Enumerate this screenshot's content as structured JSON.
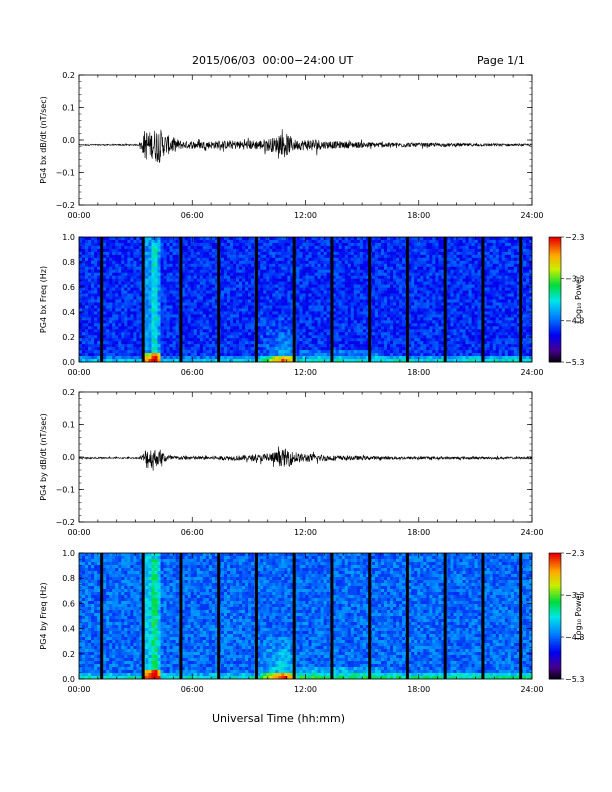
{
  "header": {
    "title": "2015/06/03  00:00−24:00 UT",
    "page": "Page 1/1"
  },
  "footer": {
    "xlabel": "Universal Time (hh:mm)"
  },
  "colors": {
    "axes": "#000000",
    "trace": "#000000",
    "gap": "#000000"
  },
  "chart_data": [
    {
      "type": "line",
      "ylabel": "PG4 bx dB/dt (nT/sec)",
      "x_ticks": [
        "00:00",
        "06:00",
        "12:00",
        "18:00",
        "24:00"
      ],
      "xlim": [
        0,
        24
      ],
      "ylim": [
        -0.2,
        0.2
      ],
      "y_ticks": [
        "0.2",
        "0.1",
        "0.0",
        "−0.1",
        "−0.2"
      ],
      "y_tick_values": [
        0.2,
        0.1,
        0.0,
        -0.1,
        -0.2
      ],
      "baseline": -0.015,
      "activity": [
        {
          "x": 3.3,
          "amp": 0.01
        },
        {
          "x": 3.5,
          "amp": 0.05
        },
        {
          "x": 3.8,
          "amp": 0.04
        },
        {
          "x": 4.2,
          "amp": 0.06
        },
        {
          "x": 4.5,
          "amp": 0.035
        },
        {
          "x": 5.5,
          "amp": 0.012
        },
        {
          "x": 7.0,
          "amp": 0.012
        },
        {
          "x": 9.5,
          "amp": 0.015
        },
        {
          "x": 10.5,
          "amp": 0.025
        },
        {
          "x": 11.0,
          "amp": 0.035
        },
        {
          "x": 11.5,
          "amp": 0.015
        },
        {
          "x": 12.5,
          "amp": 0.02
        },
        {
          "x": 13.0,
          "amp": 0.012
        },
        {
          "x": 16.0,
          "amp": 0.008
        },
        {
          "x": 20.0,
          "amp": 0.005
        },
        {
          "x": 24.0,
          "amp": 0.003
        }
      ]
    },
    {
      "type": "heatmap",
      "ylabel": "PG4 bx Freq (Hz)",
      "x_ticks": [
        "00:00",
        "06:00",
        "12:00",
        "18:00",
        "24:00"
      ],
      "xlim": [
        0,
        24
      ],
      "ylim": [
        0.0,
        1.0
      ],
      "y_ticks": [
        "1.0",
        "0.8",
        "0.6",
        "0.4",
        "0.2",
        "0.0"
      ],
      "y_tick_values": [
        1.0,
        0.8,
        0.6,
        0.4,
        0.2,
        0.0
      ],
      "colorbar_label": "Log₁₀ Power",
      "colorbar_ticks": [
        "−2.3",
        "−3.3",
        "−4.3",
        "−5.3"
      ],
      "colorbar_values": [
        -2.3,
        -3.3,
        -4.3,
        -5.3
      ],
      "gaps_hours": [
        1.2,
        3.4,
        5.4,
        7.4,
        9.4,
        11.4,
        13.4,
        15.4,
        17.4,
        19.4,
        21.4,
        23.4
      ]
    },
    {
      "type": "line",
      "ylabel": "PG4 by dB/dt (nT/sec)",
      "x_ticks": [
        "00:00",
        "06:00",
        "12:00",
        "18:00",
        "24:00"
      ],
      "xlim": [
        0,
        24
      ],
      "ylim": [
        -0.2,
        0.2
      ],
      "y_ticks": [
        "0.2",
        "0.1",
        "0.0",
        "−0.1",
        "−0.2"
      ],
      "y_tick_values": [
        0.2,
        0.1,
        0.0,
        -0.1,
        -0.2
      ],
      "baseline": -0.003,
      "activity": [
        {
          "x": 3.3,
          "amp": 0.005
        },
        {
          "x": 3.6,
          "amp": 0.035
        },
        {
          "x": 4.0,
          "amp": 0.03
        },
        {
          "x": 4.3,
          "amp": 0.02
        },
        {
          "x": 5.0,
          "amp": 0.006
        },
        {
          "x": 7.0,
          "amp": 0.005
        },
        {
          "x": 9.5,
          "amp": 0.01
        },
        {
          "x": 10.5,
          "amp": 0.02
        },
        {
          "x": 11.0,
          "amp": 0.03
        },
        {
          "x": 11.5,
          "amp": 0.015
        },
        {
          "x": 12.5,
          "amp": 0.012
        },
        {
          "x": 13.5,
          "amp": 0.008
        },
        {
          "x": 16.0,
          "amp": 0.005
        },
        {
          "x": 20.0,
          "amp": 0.004
        },
        {
          "x": 24.0,
          "amp": 0.003
        }
      ]
    },
    {
      "type": "heatmap",
      "ylabel": "PG4 by Freq (Hz)",
      "x_ticks": [
        "00:00",
        "06:00",
        "12:00",
        "18:00",
        "24:00"
      ],
      "xlim": [
        0,
        24
      ],
      "ylim": [
        0.0,
        1.0
      ],
      "y_ticks": [
        "1.0",
        "0.8",
        "0.6",
        "0.4",
        "0.2",
        "0.0"
      ],
      "y_tick_values": [
        1.0,
        0.8,
        0.6,
        0.4,
        0.2,
        0.0
      ],
      "colorbar_label": "Log₁₀ Power",
      "colorbar_ticks": [
        "−2.3",
        "−3.3",
        "−4.3",
        "−5.3"
      ],
      "colorbar_values": [
        -2.3,
        -3.3,
        -4.3,
        -5.3
      ],
      "gaps_hours": [
        1.2,
        3.4,
        5.4,
        7.4,
        9.4,
        11.4,
        13.4,
        15.4,
        17.4,
        19.4,
        21.4,
        23.4
      ]
    }
  ]
}
